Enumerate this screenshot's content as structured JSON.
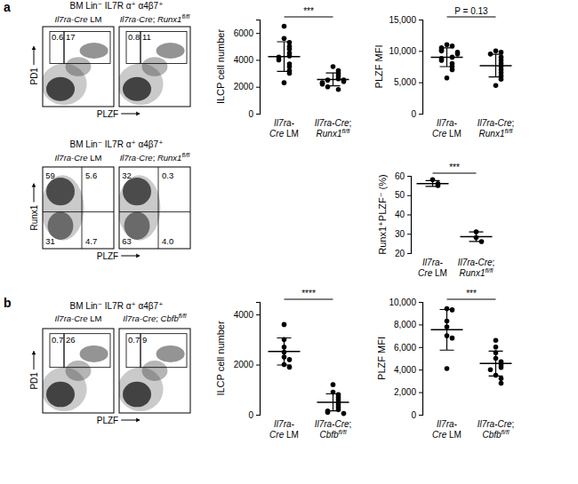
{
  "figure": {
    "panel_labels": [
      "a",
      "b"
    ]
  },
  "chart_data": [
    {
      "type": "flow",
      "title": "BM Lin⁻ IL7R α⁺ α4β7⁺",
      "xlabel": "PLZF",
      "ylabel": "PD1",
      "panels": [
        {
          "title": "Il7ra-Cre LM",
          "gates": [
            0.6,
            17
          ]
        },
        {
          "title": "Il7ra-Cre; Runx1fl/fl",
          "gates": [
            0.8,
            11
          ]
        }
      ]
    },
    {
      "type": "scatter",
      "ylabel": "ILCP cell number",
      "color": "#000000",
      "categories": [
        "Il7ra-Cre LM",
        "Il7ra-Cre; Runx1fl/fl"
      ],
      "points": [
        [
          6500,
          5600,
          5300,
          5000,
          4800,
          4500,
          4300,
          4200,
          4000,
          3700,
          3500,
          3200,
          3000,
          2300
        ],
        [
          3500,
          3200,
          3000,
          2800,
          2600,
          2500,
          2500,
          2400,
          2300,
          2200,
          2000,
          1800
        ]
      ],
      "mean": [
        4250,
        2550
      ],
      "sd": [
        1100,
        480
      ],
      "ylim": [
        0,
        7000
      ],
      "yticks": [
        0,
        2000,
        4000,
        6000
      ],
      "annotation": "***"
    },
    {
      "type": "scatter",
      "ylabel": "PLZF MFI",
      "color": "#000000",
      "categories": [
        "Il7ra-Cre LM",
        "Il7ra-Cre; Runx1fl/fl"
      ],
      "points": [
        [
          11000,
          10800,
          10500,
          10200,
          10000,
          9800,
          9500,
          9000,
          8800,
          8500,
          8000,
          7500,
          7000,
          5700
        ],
        [
          10000,
          9800,
          9500,
          9000,
          8500,
          8000,
          7500,
          7000,
          6500,
          6000,
          5500,
          4500
        ]
      ],
      "mean": [
        9000,
        7650
      ],
      "sd": [
        1500,
        1800
      ],
      "ylim": [
        0,
        15000
      ],
      "yticks": [
        0,
        {
          "value": 5000,
          "label": "5,000"
        },
        {
          "value": 10000,
          "label": "10,000"
        },
        {
          "value": 15000,
          "label": "15,000"
        }
      ],
      "annotation": "P = 0.13"
    },
    {
      "type": "flow",
      "title": "BM Lin⁻ IL7R α⁺ α4β7⁺",
      "xlabel": "PLZF",
      "ylabel": "Runx1",
      "panels": [
        {
          "title": "Il7ra-Cre LM",
          "gates": [
            59,
            5.6,
            31,
            4.7
          ]
        },
        {
          "title": "Il7ra-Cre; Runx1fl/fl",
          "gates": [
            32,
            0.3,
            63,
            {
              "value": 4,
              "label": "4.0"
            }
          ]
        }
      ]
    },
    {
      "type": "scatter",
      "ylabel": "Runx1⁺PLZF⁻ (%)",
      "color": "#000000",
      "categories": [
        "Il7ra-Cre LM",
        "Il7ra-Cre; Runx1fl/fl"
      ],
      "points": [
        [
          58,
          56,
          55
        ],
        [
          31,
          28,
          26
        ]
      ],
      "mean": [
        56,
        28.5
      ],
      "sd": [
        1.5,
        2.5
      ],
      "ylim": [
        20,
        60
      ],
      "yticks": [
        20,
        30,
        40,
        50,
        60
      ],
      "annotation": "***"
    },
    {
      "type": "flow",
      "title": "BM Lin⁻ IL7R α⁺ α4β7⁺",
      "xlabel": "PLZF",
      "ylabel": "PD1",
      "panels": [
        {
          "title": "Il7ra-Cre LM",
          "gates": [
            0.7,
            26
          ]
        },
        {
          "title": "Il7ra-Cre; Cbfbfl/fl",
          "gates": [
            0.7,
            9
          ]
        }
      ]
    },
    {
      "type": "scatter",
      "ylabel": "ILCP cell number",
      "color": "#000000",
      "categories": [
        "Il7ra-Cre LM",
        "Il7ra-Cre; Cbfbfl/fl"
      ],
      "points": [
        [
          3600,
          3000,
          2700,
          2500,
          2300,
          2200,
          2000,
          1900
        ],
        [
          1200,
          900,
          800,
          700,
          600,
          500,
          400,
          300,
          200,
          150,
          100,
          50
        ]
      ],
      "mean": [
        2525,
        492
      ],
      "sd": [
        540,
        340
      ],
      "ylim": [
        0,
        4500
      ],
      "yticks": [
        0,
        2000,
        4000
      ],
      "annotation": "****"
    },
    {
      "type": "scatter",
      "ylabel": "PLZF MFI",
      "color": "#000000",
      "categories": [
        "Il7ra-Cre LM",
        "Il7ra-Cre; Cbfbfl/fl"
      ],
      "points": [
        [
          9400,
          9300,
          8300,
          7800,
          7000,
          6800,
          4100
        ],
        [
          6600,
          6000,
          5500,
          5000,
          4700,
          4400,
          4200,
          4000,
          3500,
          3200,
          2800
        ]
      ],
      "mean": [
        7530,
        4540
      ],
      "sd": [
        1800,
        1100
      ],
      "ylim": [
        0,
        10000
      ],
      "yticks": [
        0,
        {
          "value": 2000,
          "label": "2,000"
        },
        {
          "value": 4000,
          "label": "4,000"
        },
        {
          "value": 6000,
          "label": "6,000"
        },
        {
          "value": 8000,
          "label": "8,000"
        },
        {
          "value": 10000,
          "label": "10,000"
        }
      ],
      "annotation": "***"
    }
  ]
}
